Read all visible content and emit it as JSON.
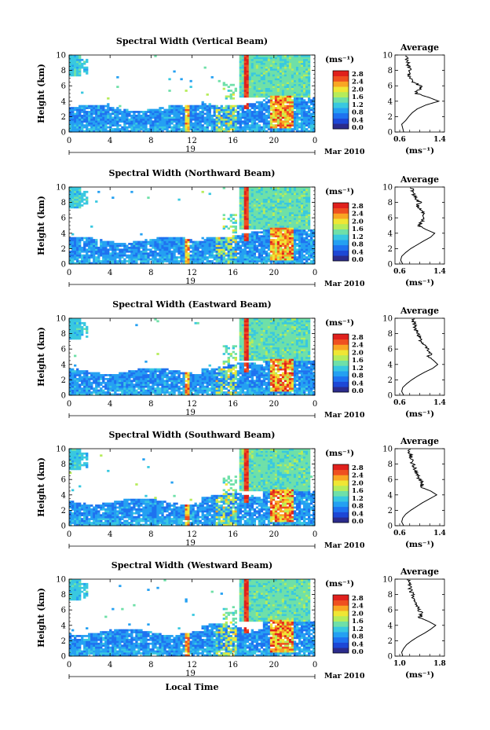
{
  "figure": {
    "xlabel": "Local Time",
    "date_label": "Mar 2010",
    "colorbar_unit": "(ms⁻¹)",
    "colorbar_ticks": [
      "2.8",
      "2.4",
      "2.0",
      "1.6",
      "1.2",
      "0.8",
      "0.4",
      "0.0"
    ],
    "colormap": [
      "#2b2b8c",
      "#1d47d6",
      "#1e72f0",
      "#24a0f2",
      "#38c8e0",
      "#6ee0a8",
      "#b6ec5a",
      "#f0e634",
      "#f9a623",
      "#ef5020",
      "#e0201c"
    ],
    "x_ticks": [
      "0",
      "4",
      "8",
      "12",
      "16",
      "20",
      "0"
    ],
    "day_label": "19",
    "y_ticks": [
      "0",
      "2",
      "4",
      "6",
      "8",
      "10"
    ],
    "ylabel": "Height (km)",
    "avg_title": "Average",
    "avg_unit": "(ms⁻¹)"
  },
  "chart_data": [
    {
      "type": "heatmap",
      "title": "Spectral Width (Vertical Beam)",
      "xlabel": "",
      "ylabel": "Height (km)",
      "xlim": [
        0,
        24
      ],
      "ylim": [
        0,
        10
      ],
      "clim": [
        0,
        3.0
      ],
      "x_ticks": [
        "0",
        "4",
        "8",
        "12",
        "16",
        "20",
        "0"
      ],
      "y_ticks": [
        "0",
        "2",
        "4",
        "6",
        "8",
        "10"
      ],
      "day": "19",
      "date": "Mar 2010",
      "average_profile": {
        "type": "line",
        "title": "Average",
        "xlabel": "(ms⁻¹)",
        "ylabel": "Height (km)",
        "xlim": [
          0.6,
          1.4
        ],
        "xticks": [
          "0.6",
          "1.4"
        ],
        "ylim": [
          0,
          10
        ],
        "height": [
          0,
          0.5,
          1,
          1.5,
          2,
          2.5,
          3,
          3.5,
          4,
          4.5,
          5,
          5.5,
          6,
          6.5,
          7,
          7.5,
          8,
          8.5,
          9,
          9.5,
          10
        ],
        "width": [
          0.68,
          0.66,
          0.64,
          0.72,
          0.78,
          0.85,
          0.95,
          1.12,
          1.38,
          1.18,
          0.92,
          0.98,
          1.02,
          0.86,
          0.8,
          0.78,
          0.82,
          0.78,
          0.76,
          0.74,
          0.72
        ]
      }
    },
    {
      "type": "heatmap",
      "title": "Spectral Width (Northward Beam)",
      "xlabel": "",
      "ylabel": "Height (km)",
      "xlim": [
        0,
        24
      ],
      "ylim": [
        0,
        10
      ],
      "clim": [
        0,
        3.0
      ],
      "x_ticks": [
        "0",
        "4",
        "8",
        "12",
        "16",
        "20",
        "0"
      ],
      "y_ticks": [
        "0",
        "2",
        "4",
        "6",
        "8",
        "10"
      ],
      "day": "19",
      "date": "Mar 2010",
      "average_profile": {
        "type": "line",
        "title": "Average",
        "xlabel": "(ms⁻¹)",
        "ylabel": "Height (km)",
        "xlim": [
          0.6,
          1.4
        ],
        "xticks": [
          "0.6",
          "1.4"
        ],
        "ylim": [
          0,
          10
        ],
        "height": [
          0,
          0.5,
          1,
          1.5,
          2,
          2.5,
          3,
          3.5,
          4,
          4.5,
          5,
          5.5,
          6,
          6.5,
          7,
          7.5,
          8,
          8.5,
          9,
          9.5,
          10
        ],
        "width": [
          0.66,
          0.62,
          0.64,
          0.72,
          0.82,
          0.95,
          1.08,
          1.22,
          1.3,
          1.12,
          0.98,
          1.04,
          1.08,
          1.1,
          1.02,
          0.96,
          1.0,
          0.92,
          0.88,
          0.86,
          0.84
        ]
      }
    },
    {
      "type": "heatmap",
      "title": "Spectral Width (Eastward Beam)",
      "xlabel": "",
      "ylabel": "Height (km)",
      "xlim": [
        0,
        24
      ],
      "ylim": [
        0,
        10
      ],
      "clim": [
        0,
        3.0
      ],
      "x_ticks": [
        "0",
        "4",
        "8",
        "12",
        "16",
        "20",
        "0"
      ],
      "y_ticks": [
        "0",
        "2",
        "4",
        "6",
        "8",
        "10"
      ],
      "day": "19",
      "date": "Mar 2010",
      "average_profile": {
        "type": "line",
        "title": "Average",
        "xlabel": "(ms⁻¹)",
        "ylabel": "Height (km)",
        "xlim": [
          0.6,
          1.4
        ],
        "xticks": [
          "0.6",
          "1.4"
        ],
        "ylim": [
          0,
          10
        ],
        "height": [
          0,
          0.5,
          1,
          1.5,
          2,
          2.5,
          3,
          3.5,
          4,
          4.5,
          5,
          5.5,
          6,
          6.5,
          7,
          7.5,
          8,
          8.5,
          9,
          9.5,
          10
        ],
        "width": [
          0.68,
          0.64,
          0.66,
          0.74,
          0.84,
          0.96,
          1.1,
          1.26,
          1.36,
          1.28,
          1.18,
          1.22,
          1.16,
          1.1,
          1.02,
          1.0,
          0.96,
          0.92,
          0.9,
          0.88,
          0.86
        ]
      }
    },
    {
      "type": "heatmap",
      "title": "Spectral Width (Southward Beam)",
      "xlabel": "",
      "ylabel": "Height (km)",
      "xlim": [
        0,
        24
      ],
      "ylim": [
        0,
        10
      ],
      "clim": [
        0,
        3.0
      ],
      "x_ticks": [
        "0",
        "4",
        "8",
        "12",
        "16",
        "20",
        "0"
      ],
      "y_ticks": [
        "0",
        "2",
        "4",
        "6",
        "8",
        "10"
      ],
      "day": "19",
      "date": "Mar 2010",
      "average_profile": {
        "type": "line",
        "title": "Average",
        "xlabel": "(ms⁻¹)",
        "ylabel": "Height (km)",
        "xlim": [
          0.6,
          1.4
        ],
        "xticks": [
          "0.6",
          "1.4"
        ],
        "ylim": [
          0,
          10
        ],
        "height": [
          0,
          0.5,
          1,
          1.5,
          2,
          2.5,
          3,
          3.5,
          4,
          4.5,
          5,
          5.5,
          6,
          6.5,
          7,
          7.5,
          8,
          8.5,
          9,
          9.5,
          10
        ],
        "width": [
          0.68,
          0.64,
          0.66,
          0.72,
          0.82,
          0.94,
          1.06,
          1.2,
          1.34,
          1.22,
          1.02,
          1.06,
          1.0,
          0.96,
          0.92,
          0.9,
          0.86,
          0.84,
          0.82,
          0.8,
          0.78
        ]
      }
    },
    {
      "type": "heatmap",
      "title": "Spectral Width (Westward Beam)",
      "xlabel": "Local Time",
      "ylabel": "Height (km)",
      "xlim": [
        0,
        24
      ],
      "ylim": [
        0,
        10
      ],
      "clim": [
        0,
        3.0
      ],
      "x_ticks": [
        "0",
        "4",
        "8",
        "12",
        "16",
        "20",
        "0"
      ],
      "y_ticks": [
        "0",
        "2",
        "4",
        "6",
        "8",
        "10"
      ],
      "day": "19",
      "date": "Mar 2010",
      "average_profile": {
        "type": "line",
        "title": "Average",
        "xlabel": "(ms⁻¹)",
        "ylabel": "Height (km)",
        "xlim": [
          1.0,
          1.8
        ],
        "xticks": [
          "1.0",
          "1.8"
        ],
        "ylim": [
          0,
          10
        ],
        "height": [
          0,
          0.5,
          1,
          1.5,
          2,
          2.5,
          3,
          3.5,
          4,
          4.5,
          5,
          5.5,
          6,
          6.5,
          7,
          7.5,
          8,
          8.5,
          9,
          9.5,
          10
        ],
        "width": [
          1.06,
          1.04,
          1.08,
          1.14,
          1.24,
          1.36,
          1.5,
          1.62,
          1.72,
          1.58,
          1.4,
          1.44,
          1.38,
          1.34,
          1.3,
          1.28,
          1.26,
          1.22,
          1.2,
          1.18,
          1.16
        ]
      }
    }
  ]
}
